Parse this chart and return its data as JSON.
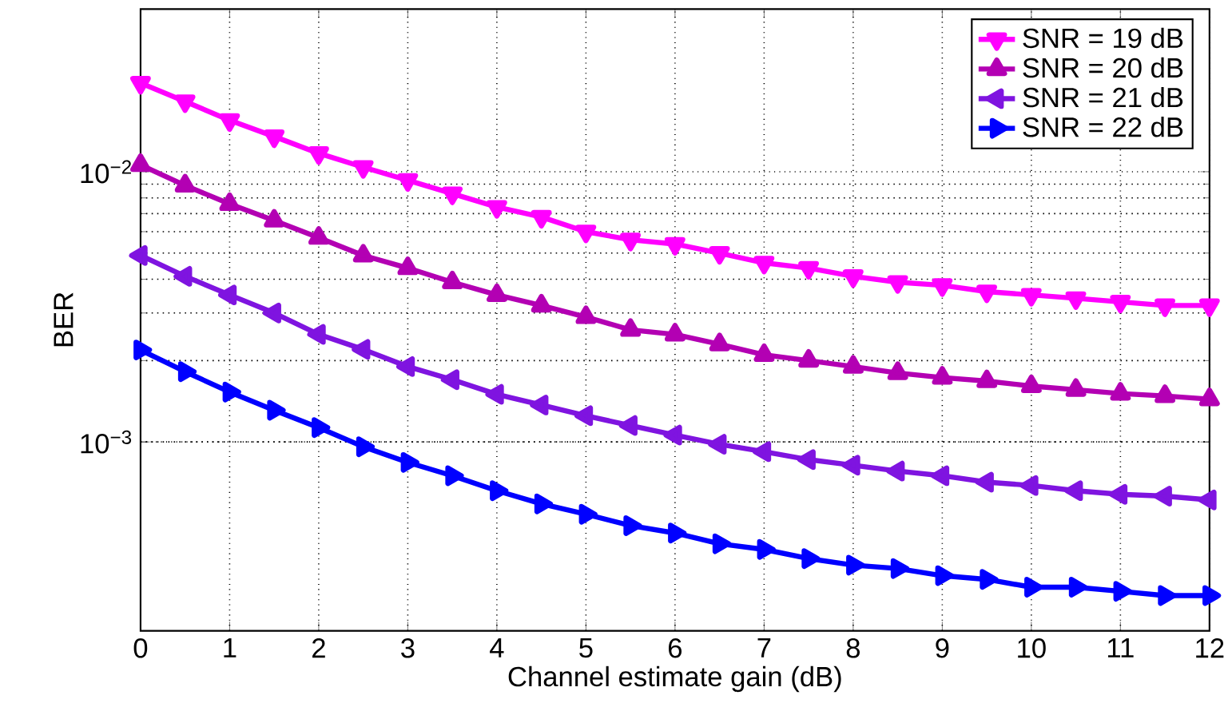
{
  "chart_data": {
    "type": "line",
    "xlabel": "Channel estimate gain (dB)",
    "ylabel": "BER",
    "log": "y",
    "grid": true,
    "legend": "top right",
    "line_style": "solid",
    "x": [
      0,
      0.5,
      1,
      1.5,
      2,
      2.5,
      3,
      3.5,
      4,
      4.5,
      5,
      5.5,
      6,
      6.5,
      7,
      7.5,
      8,
      8.5,
      9,
      9.5,
      10,
      10.5,
      11,
      11.5,
      12
    ],
    "xlim": [
      0,
      12
    ],
    "xticks": [
      0,
      1,
      2,
      3,
      4,
      5,
      6,
      7,
      8,
      9,
      10,
      11,
      12
    ],
    "ylim": [
      0.0002,
      0.04
    ],
    "yticks": [
      {
        "value": 0.001,
        "label": "10$^{−3}$"
      },
      {
        "value": 0.01,
        "label": "10$^{−2}$"
      }
    ],
    "series": [
      {
        "name": "SNR = 19 dB",
        "color": "#ff00ff",
        "marker": "triangle",
        "values": [
          0.0213,
          0.0182,
          0.0155,
          0.0135,
          0.0117,
          0.0104,
          0.0093,
          0.0083,
          0.0074,
          0.0068,
          0.006,
          0.0056,
          0.0054,
          0.005,
          0.0046,
          0.0044,
          0.0041,
          0.0039,
          0.0038,
          0.0036,
          0.0035,
          0.0034,
          0.0033,
          0.0032,
          0.0032
        ]
      },
      {
        "name": "SNR = 20 dB",
        "color": "#b300b3",
        "marker": "triangle",
        "values": [
          0.0106,
          0.0089,
          0.0076,
          0.0066,
          0.0057,
          0.0049,
          0.0044,
          0.0039,
          0.0035,
          0.0032,
          0.0029,
          0.0026,
          0.0025,
          0.0023,
          0.0021,
          0.002,
          0.0019,
          0.0018,
          0.00173,
          0.00168,
          0.00161,
          0.00156,
          0.00151,
          0.00148,
          0.00144
        ]
      },
      {
        "name": "SNR = 21 dB",
        "color": "#7f14e0",
        "marker": "triangle",
        "values": [
          0.0049,
          0.0041,
          0.0035,
          0.003,
          0.0025,
          0.0022,
          0.0019,
          0.0017,
          0.0015,
          0.00137,
          0.00125,
          0.00115,
          0.00106,
          0.00098,
          0.00092,
          0.00086,
          0.00082,
          0.00078,
          0.00075,
          0.00071,
          0.00069,
          0.00066,
          0.00064,
          0.00063,
          0.00061
        ]
      },
      {
        "name": "SNR = 22 dB",
        "color": "#0000ff",
        "marker": "triangle",
        "values": [
          0.00219,
          0.00182,
          0.00153,
          0.00131,
          0.00113,
          0.00096,
          0.00084,
          0.00075,
          0.00066,
          0.00059,
          0.00054,
          0.00049,
          0.00046,
          0.00042,
          0.0004,
          0.00037,
          0.00035,
          0.00034,
          0.00032,
          0.00031,
          0.00029,
          0.00029,
          0.00028,
          0.00027,
          0.00027
        ]
      }
    ]
  }
}
